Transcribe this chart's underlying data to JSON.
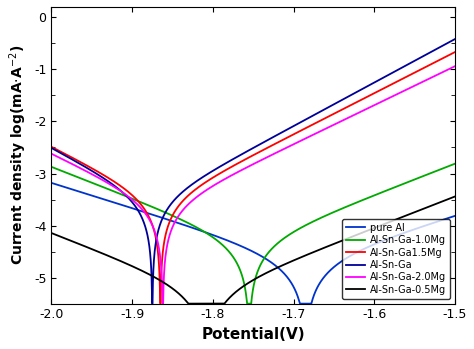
{
  "title": "",
  "xlabel": "Potential(V)",
  "ylabel": "Current density log(mA·A⁻²)",
  "xlim": [
    -2.0,
    -1.5
  ],
  "ylim": [
    -5.5,
    0.2
  ],
  "xticks": [
    -2.0,
    -1.9,
    -1.8,
    -1.7,
    -1.6,
    -1.5
  ],
  "yticks": [
    0,
    -1,
    -2,
    -3,
    -4,
    -5
  ],
  "series": [
    {
      "label": "pure Al",
      "color": "#0033CC",
      "E_corr": -1.685,
      "log_i_corr": -4.7,
      "ba": 0.09,
      "bc": 0.09
    },
    {
      "label": "Al-Sn-Ga-1.0Mg",
      "color": "#00AA00",
      "E_corr": -1.755,
      "log_i_corr": -4.35,
      "ba": 0.072,
      "bc": 0.072
    },
    {
      "label": "Al-Sn-Ga1.5Mg",
      "color": "#FF0000",
      "E_corr": -1.865,
      "log_i_corr": -3.55,
      "ba": 0.055,
      "bc": 0.055
    },
    {
      "label": "Al-Sn-Ga",
      "color": "#000099",
      "E_corr": -1.875,
      "log_i_corr": -3.55,
      "ba": 0.052,
      "bc": 0.052
    },
    {
      "label": "Al-Sn-Ga-2.0Mg",
      "color": "#FF00FF",
      "E_corr": -1.862,
      "log_i_corr": -3.65,
      "ba": 0.058,
      "bc": 0.058
    },
    {
      "label": "Al-Sn-Ga-0.5Mg",
      "color": "#000000",
      "E_corr": -1.808,
      "log_i_corr": -5.3,
      "ba": 0.072,
      "bc": 0.072
    }
  ],
  "background_color": "#ffffff",
  "legend_fontsize": 7,
  "axis_fontsize": 11,
  "tick_fontsize": 9
}
